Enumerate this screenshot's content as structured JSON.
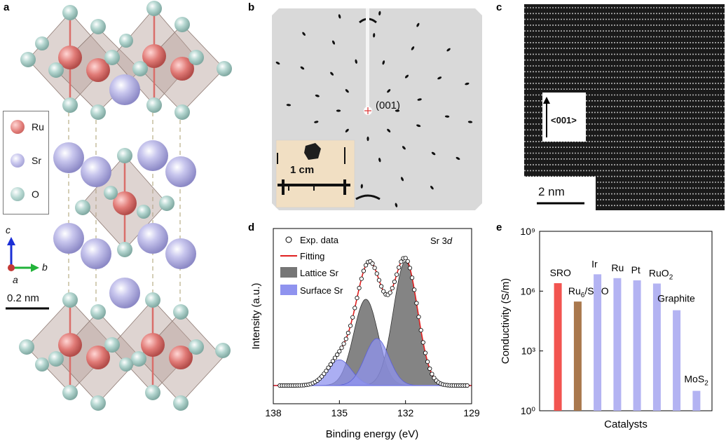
{
  "panel_a": {
    "label": "a",
    "legend": [
      {
        "name": "Ru",
        "color": "#e07a76"
      },
      {
        "name": "Sr",
        "color": "#b6b4e2"
      },
      {
        "name": "O",
        "color": "#a5cbc4"
      }
    ],
    "axes": {
      "c": "c",
      "a": "a",
      "b": "b"
    },
    "scale_bar": "0.2 nm"
  },
  "panel_b": {
    "label": "b",
    "spot_label": "(001)",
    "inset_scale": "1 cm"
  },
  "panel_c": {
    "label": "c",
    "direction": "<001>",
    "scale_bar": "2 nm"
  },
  "panel_d": {
    "label": "d",
    "annotation": "Sr 3",
    "annotation_italic": "d",
    "chart_data": {
      "type": "line",
      "xlabel": "Binding energy (eV)",
      "ylabel": "Intensity (a.u.)",
      "xlim": [
        138,
        129
      ],
      "xticks": [
        "138",
        "135",
        "132",
        "129"
      ],
      "legend": [
        "Exp. data",
        "Fitting",
        "Lattice Sr",
        "Surface Sr"
      ],
      "series": [
        {
          "name": "Lattice Sr",
          "components": [
            {
              "center": 133.8,
              "height": 0.57,
              "width": 0.55
            },
            {
              "center": 132.0,
              "height": 0.82,
              "width": 0.55
            }
          ]
        },
        {
          "name": "Surface Sr",
          "components": [
            {
              "center": 135.0,
              "height": 0.17,
              "width": 0.55
            },
            {
              "center": 133.3,
              "height": 0.31,
              "width": 0.55
            }
          ]
        }
      ]
    }
  },
  "panel_e": {
    "label": "e",
    "chart_data": {
      "type": "bar",
      "xlabel": "Catalysts",
      "ylabel": "Conductivity (S/m)",
      "yscale": "log",
      "ylim": [
        1,
        1000000000
      ],
      "yticks": [
        "10⁰",
        "10³",
        "10⁶",
        "10⁹"
      ],
      "categories": [
        "SRO",
        "Ru6/SRO",
        "Ir",
        "Ru",
        "Pt",
        "RuO2",
        "Graphite",
        "MoS2"
      ],
      "category_labels": [
        {
          "main": "SRO"
        },
        {
          "main": "Ru",
          "sub": "6",
          "rest": "/SRO"
        },
        {
          "main": "Ir"
        },
        {
          "main": "Ru"
        },
        {
          "main": "Pt"
        },
        {
          "main": "RuO",
          "sub": "2"
        },
        {
          "main": "Graphite"
        },
        {
          "main": "MoS",
          "sub": "2"
        }
      ],
      "values": [
        2500000,
        300000,
        7000000,
        4500000,
        3500000,
        2400000,
        110000,
        10
      ],
      "colors": [
        "#f25450",
        "#a9784d",
        "#b3b3f2",
        "#b3b3f2",
        "#b3b3f2",
        "#b3b3f2",
        "#b3b3f2",
        "#b3b3f2"
      ]
    }
  }
}
